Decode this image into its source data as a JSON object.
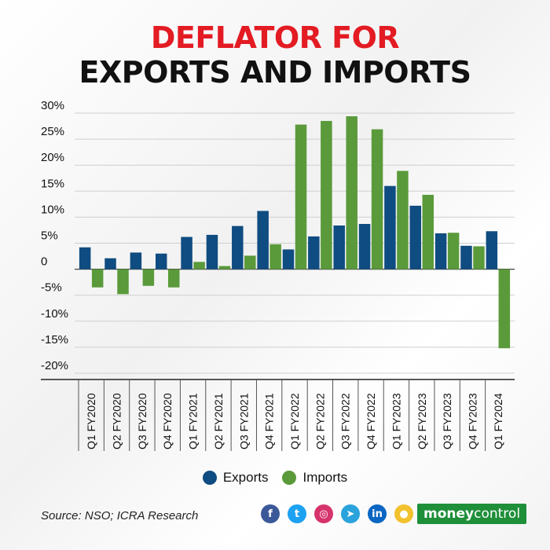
{
  "header": {
    "title_line1": "DEFLATOR FOR",
    "title_line2": "EXPORTS AND IMPORTS"
  },
  "chart_data": {
    "type": "bar",
    "categories": [
      "Q1 FY2020",
      "Q2 FY2020",
      "Q3 FY2020",
      "Q4 FY2020",
      "Q1 FY2021",
      "Q2 FY2021",
      "Q3 FY2021",
      "Q4 FY2021",
      "Q1 FY2022",
      "Q2 FY2022",
      "Q3 FY2022",
      "Q4 FY2022",
      "Q1 FY2023",
      "Q2 FY2023",
      "Q3 FY2023",
      "Q4 FY2023",
      "Q1 FY2024"
    ],
    "series": [
      {
        "name": "Exports",
        "color": "#0f4c81",
        "values": [
          4.2,
          2.1,
          3.2,
          3.0,
          6.2,
          6.6,
          8.3,
          11.2,
          3.8,
          6.3,
          8.4,
          8.7,
          16.0,
          12.2,
          6.9,
          4.5,
          7.3
        ]
      },
      {
        "name": "Imports",
        "color": "#5a9a3a",
        "values": [
          -3.5,
          -4.8,
          -3.2,
          -3.5,
          1.4,
          0.6,
          2.6,
          4.8,
          27.8,
          28.5,
          29.4,
          26.9,
          18.9,
          14.3,
          7.0,
          4.4,
          -15.2
        ]
      }
    ],
    "yticks": [
      30,
      25,
      20,
      15,
      10,
      5,
      0,
      -5,
      -10,
      -15,
      -20
    ],
    "ytick_labels": [
      "30%",
      "25%",
      "20%",
      "15%",
      "10%",
      "5%",
      "0",
      "-5%",
      "-10%",
      "-15%",
      "-20%"
    ],
    "ylim": [
      -20,
      30
    ],
    "grid": true,
    "legend": "bottom"
  },
  "footer": {
    "source": "Source: NSO; ICRA Research",
    "brand_part1": "money",
    "brand_part2": "control",
    "socials": [
      {
        "name": "facebook-icon",
        "glyph": "f",
        "color": "#3b5998"
      },
      {
        "name": "twitter-icon",
        "glyph": "t",
        "color": "#1da1f2"
      },
      {
        "name": "instagram-icon",
        "glyph": "◎",
        "color": "#d6336c"
      },
      {
        "name": "telegram-icon",
        "glyph": "➤",
        "color": "#2aa3dd"
      },
      {
        "name": "linkedin-icon",
        "glyph": "in",
        "color": "#0a66c2"
      },
      {
        "name": "koo-icon",
        "glyph": "●",
        "color": "#f2c12e"
      }
    ]
  }
}
